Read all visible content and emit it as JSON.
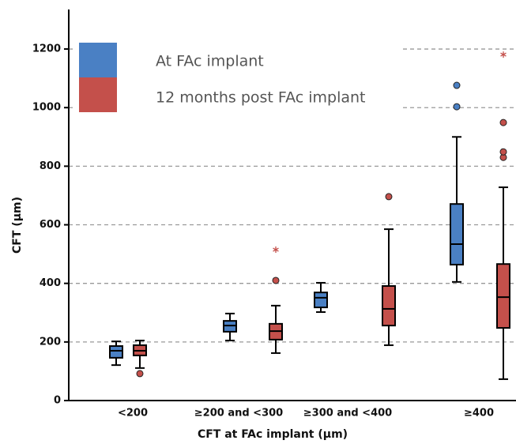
{
  "chart_data": {
    "type": "box",
    "x_label": "CFT at FAc implant (µm)",
    "y_label": "CFT (µm)",
    "categories": [
      "<200",
      "≥200 and <300",
      "≥300 and <400",
      "≥400"
    ],
    "ylim": [
      0,
      1335
    ],
    "yticks": [
      0,
      200,
      400,
      600,
      800,
      1000,
      1200
    ],
    "grid": true,
    "legend_position": "upper-left",
    "series": [
      {
        "name": "At FAc implant",
        "color": "#4a80c4",
        "boxes": [
          {
            "whislo": 121,
            "q1": 146,
            "med": 170,
            "q3": 186,
            "whishi": 202,
            "outliers": [],
            "extremes": []
          },
          {
            "whislo": 205,
            "q1": 235,
            "med": 256,
            "q3": 272,
            "whishi": 297,
            "outliers": [],
            "extremes": []
          },
          {
            "whislo": 302,
            "q1": 318,
            "med": 351,
            "q3": 369,
            "whishi": 402,
            "outliers": [],
            "extremes": []
          },
          {
            "whislo": 405,
            "q1": 464,
            "med": 534,
            "q3": 671,
            "whishi": 900,
            "outliers": [
              1003,
              1076
            ],
            "extremes": []
          }
        ]
      },
      {
        "name": "12 months post FAc implant",
        "color": "#c4504b",
        "boxes": [
          {
            "whislo": 111,
            "q1": 154,
            "med": 170,
            "q3": 189,
            "whishi": 205,
            "outliers": [
              92
            ],
            "extremes": []
          },
          {
            "whislo": 162,
            "q1": 208,
            "med": 237,
            "q3": 262,
            "whishi": 324,
            "outliers": [
              410
            ],
            "extremes": [
              515
            ]
          },
          {
            "whislo": 189,
            "q1": 256,
            "med": 313,
            "q3": 391,
            "whishi": 585,
            "outliers": [
              696
            ],
            "extremes": []
          },
          {
            "whislo": 73,
            "q1": 248,
            "med": 353,
            "q3": 466,
            "whishi": 728,
            "outliers": [
              830,
              849,
              949
            ],
            "extremes": [
              1181
            ]
          }
        ]
      }
    ]
  }
}
